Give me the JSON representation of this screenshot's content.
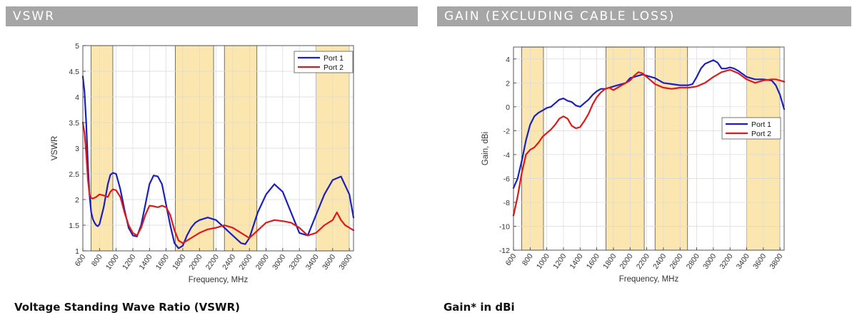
{
  "sections": {
    "left_title": "VSWR",
    "right_title": "GAIN (EXCLUDING CABLE LOSS)",
    "left_caption": "Voltage Standing Wave Ratio (VSWR)",
    "right_caption": "Gain* in dBi"
  },
  "chart_data": [
    {
      "type": "line",
      "title": "",
      "xlabel": "Frequency, MHz",
      "ylabel": "VSWR",
      "xlim": [
        600,
        3850
      ],
      "ylim": [
        1,
        5
      ],
      "xticks": [
        600,
        800,
        1000,
        1200,
        1400,
        1600,
        1800,
        2000,
        2200,
        2400,
        2600,
        2800,
        3000,
        3200,
        3400,
        3600,
        3800
      ],
      "yticks": [
        1,
        1.5,
        2,
        2.5,
        3,
        3.5,
        4,
        4.5,
        5
      ],
      "grid": true,
      "legend_position": "top-right",
      "highlight_bands": [
        [
          698,
          960
        ],
        [
          1710,
          2170
        ],
        [
          2300,
          2690
        ],
        [
          3400,
          3800
        ]
      ],
      "highlight_color": "#fbe6b0",
      "series": [
        {
          "name": "Port 1",
          "color": "#1a1fc0",
          "x": [
            600,
            620,
            640,
            660,
            680,
            700,
            720,
            740,
            760,
            780,
            800,
            850,
            900,
            930,
            960,
            1000,
            1050,
            1100,
            1150,
            1200,
            1250,
            1300,
            1350,
            1400,
            1450,
            1500,
            1550,
            1600,
            1650,
            1700,
            1750,
            1800,
            1850,
            1900,
            1950,
            2000,
            2100,
            2200,
            2300,
            2400,
            2500,
            2550,
            2600,
            2650,
            2700,
            2800,
            2900,
            3000,
            3100,
            3200,
            3300,
            3400,
            3500,
            3600,
            3700,
            3800,
            3850
          ],
          "y": [
            4.4,
            4.1,
            3.5,
            2.7,
            2.1,
            1.75,
            1.62,
            1.55,
            1.5,
            1.48,
            1.52,
            1.85,
            2.3,
            2.48,
            2.52,
            2.5,
            2.2,
            1.8,
            1.45,
            1.3,
            1.28,
            1.5,
            1.9,
            2.3,
            2.47,
            2.45,
            2.3,
            1.9,
            1.5,
            1.15,
            1.05,
            1.1,
            1.3,
            1.45,
            1.55,
            1.6,
            1.65,
            1.6,
            1.45,
            1.3,
            1.15,
            1.13,
            1.25,
            1.5,
            1.75,
            2.1,
            2.3,
            2.15,
            1.75,
            1.35,
            1.3,
            1.7,
            2.1,
            2.38,
            2.45,
            2.1,
            1.65
          ]
        },
        {
          "name": "Port 2",
          "color": "#e01818",
          "x": [
            600,
            620,
            640,
            660,
            680,
            700,
            720,
            760,
            800,
            850,
            900,
            930,
            960,
            1000,
            1050,
            1100,
            1150,
            1200,
            1250,
            1300,
            1350,
            1400,
            1450,
            1500,
            1550,
            1600,
            1650,
            1700,
            1750,
            1800,
            1900,
            2000,
            2100,
            2200,
            2300,
            2400,
            2500,
            2600,
            2700,
            2800,
            2900,
            3000,
            3100,
            3200,
            3300,
            3400,
            3500,
            3600,
            3650,
            3700,
            3750,
            3800,
            3850
          ],
          "y": [
            3.5,
            3.3,
            2.9,
            2.4,
            2.1,
            2.03,
            2.02,
            2.05,
            2.1,
            2.08,
            2.05,
            2.15,
            2.2,
            2.18,
            2.05,
            1.75,
            1.5,
            1.35,
            1.3,
            1.45,
            1.7,
            1.88,
            1.87,
            1.85,
            1.88,
            1.85,
            1.7,
            1.4,
            1.2,
            1.15,
            1.25,
            1.35,
            1.42,
            1.45,
            1.5,
            1.45,
            1.35,
            1.25,
            1.4,
            1.55,
            1.6,
            1.58,
            1.55,
            1.45,
            1.3,
            1.35,
            1.5,
            1.6,
            1.75,
            1.6,
            1.5,
            1.45,
            1.4
          ]
        }
      ]
    },
    {
      "type": "line",
      "title": "",
      "xlabel": "Frequency, MHz",
      "ylabel": "Gain, dBi",
      "xlim": [
        600,
        3850
      ],
      "ylim": [
        -12,
        5
      ],
      "xticks": [
        600,
        800,
        1000,
        1200,
        1400,
        1600,
        1800,
        2000,
        2200,
        2400,
        2600,
        2800,
        3000,
        3200,
        3400,
        3600,
        3800
      ],
      "yticks": [
        -12,
        -10,
        -8,
        -6,
        -4,
        -2,
        0,
        2,
        4
      ],
      "grid": true,
      "legend_position": "center-right",
      "highlight_bands": [
        [
          698,
          960
        ],
        [
          1710,
          2170
        ],
        [
          2300,
          2690
        ],
        [
          3400,
          3800
        ]
      ],
      "highlight_color": "#fbe6b0",
      "series": [
        {
          "name": "Port 1",
          "color": "#1a1fc0",
          "x": [
            600,
            650,
            700,
            750,
            800,
            850,
            900,
            950,
            1000,
            1050,
            1100,
            1150,
            1200,
            1250,
            1300,
            1350,
            1400,
            1450,
            1500,
            1550,
            1600,
            1650,
            1700,
            1750,
            1800,
            1850,
            1900,
            1950,
            2000,
            2050,
            2100,
            2150,
            2200,
            2300,
            2400,
            2500,
            2600,
            2700,
            2750,
            2800,
            2850,
            2900,
            3000,
            3050,
            3100,
            3150,
            3200,
            3250,
            3300,
            3400,
            3500,
            3600,
            3700,
            3750,
            3800,
            3850
          ],
          "y": [
            -6.8,
            -6.0,
            -4.5,
            -2.8,
            -1.5,
            -0.8,
            -0.5,
            -0.3,
            -0.1,
            0.0,
            0.3,
            0.6,
            0.7,
            0.5,
            0.4,
            0.1,
            0.0,
            0.3,
            0.6,
            1.0,
            1.3,
            1.5,
            1.5,
            1.6,
            1.7,
            1.8,
            1.9,
            2.0,
            2.4,
            2.5,
            2.6,
            2.7,
            2.6,
            2.4,
            2.0,
            1.9,
            1.8,
            1.8,
            1.9,
            2.5,
            3.2,
            3.6,
            3.9,
            3.7,
            3.2,
            3.2,
            3.3,
            3.2,
            3.0,
            2.5,
            2.3,
            2.3,
            2.2,
            1.8,
            1.0,
            -0.2
          ]
        },
        {
          "name": "Port 2",
          "color": "#e01818",
          "x": [
            600,
            650,
            700,
            750,
            800,
            850,
            900,
            950,
            1000,
            1050,
            1100,
            1150,
            1200,
            1250,
            1300,
            1350,
            1400,
            1450,
            1500,
            1550,
            1600,
            1650,
            1700,
            1750,
            1800,
            1850,
            1900,
            1950,
            2000,
            2050,
            2100,
            2150,
            2200,
            2300,
            2400,
            2500,
            2600,
            2700,
            2800,
            2900,
            3000,
            3100,
            3200,
            3300,
            3400,
            3500,
            3600,
            3700,
            3750,
            3800,
            3850
          ],
          "y": [
            -9.1,
            -7.5,
            -5.5,
            -4.0,
            -3.6,
            -3.4,
            -3.0,
            -2.5,
            -2.2,
            -1.9,
            -1.5,
            -1.0,
            -0.8,
            -1.0,
            -1.6,
            -1.8,
            -1.7,
            -1.2,
            -0.6,
            0.2,
            0.8,
            1.2,
            1.5,
            1.6,
            1.4,
            1.6,
            1.8,
            2.0,
            2.2,
            2.6,
            2.9,
            2.8,
            2.5,
            1.9,
            1.6,
            1.5,
            1.6,
            1.6,
            1.7,
            2.0,
            2.5,
            2.9,
            3.1,
            2.8,
            2.3,
            2.0,
            2.2,
            2.3,
            2.3,
            2.2,
            2.1
          ]
        }
      ]
    }
  ]
}
